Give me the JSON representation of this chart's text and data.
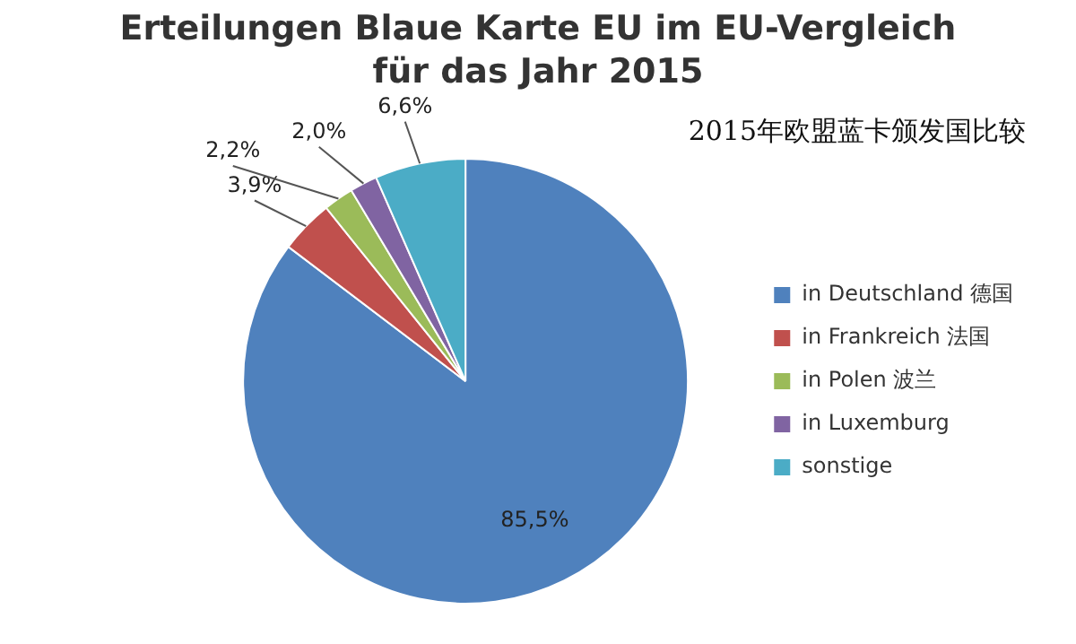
{
  "chart_data": {
    "type": "pie",
    "title": "Erteilungen Blaue Karte EU im EU-Vergleich\nfür das Jahr 2015",
    "subtitle": "2015年欧盟蓝卡颁发国比较",
    "categories": [
      "in Deutschland 德国",
      "in Frankreich 法国",
      "in Polen 波兰",
      "in Luxemburg",
      "sonstige"
    ],
    "values": [
      85.5,
      3.9,
      2.2,
      2.0,
      6.6
    ],
    "value_labels": [
      "85,5%",
      "3,9%",
      "2,2%",
      "2,0%",
      "6,6%"
    ],
    "colors": [
      "#4f81bd",
      "#c0504d",
      "#9bbb59",
      "#8064a2",
      "#4bacc6"
    ],
    "legend": "right"
  }
}
